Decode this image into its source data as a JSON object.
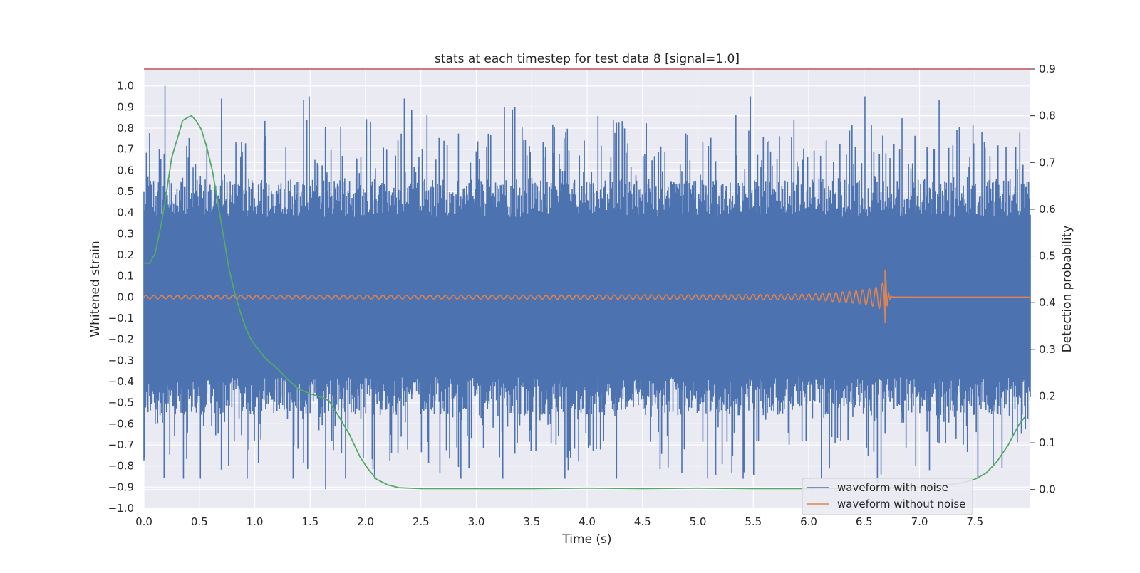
{
  "chart_data": {
    "type": "line",
    "title": "stats at each timestep for test data 8 [signal=1.0]",
    "xlabel": "Time (s)",
    "ylabel": "Whitened strain",
    "y2label": "Detection probability",
    "xlim": [
      0.0,
      8.0
    ],
    "ylim": [
      -1.0,
      1.08
    ],
    "y2lim": [
      -0.04,
      0.9
    ],
    "xticks": [
      "0.0",
      "0.5",
      "1.0",
      "1.5",
      "2.0",
      "2.5",
      "3.0",
      "3.5",
      "4.0",
      "4.5",
      "5.0",
      "5.5",
      "6.0",
      "6.5",
      "7.0",
      "7.5"
    ],
    "yticks": [
      "1.0",
      "0.9",
      "0.8",
      "0.7",
      "0.6",
      "0.5",
      "0.4",
      "0.3",
      "0.2",
      "0.1",
      "0.0",
      "−0.1",
      "−0.2",
      "−0.3",
      "−0.4",
      "−0.5",
      "−0.6",
      "−0.7",
      "−0.8",
      "−0.9",
      "−1.0"
    ],
    "y2ticks": [
      "0.9",
      "0.8",
      "0.7",
      "0.6",
      "0.5",
      "0.4",
      "0.3",
      "0.2",
      "0.1",
      "0.0"
    ],
    "grid": true,
    "background": "#eaeaf2",
    "legend_position": "lower-right",
    "threshold": {
      "y2": 0.9,
      "color": "#c44e52"
    },
    "series": [
      {
        "name": "waveform with noise",
        "color": "#4c72b0",
        "axis": "left",
        "noise": {
          "core_amplitude": 0.38,
          "peak_max": 1.0,
          "trough_min": -0.91,
          "sample_count": 1100
        }
      },
      {
        "name": "waveform without noise",
        "color": "#dd8452",
        "axis": "left",
        "chirp": {
          "start_amplitude": 0.008,
          "peak_amplitude": 0.13,
          "merger_time": 6.69
        }
      },
      {
        "color": "#55a868",
        "axis": "right",
        "x": [
          0.0,
          0.05,
          0.1,
          0.15,
          0.2,
          0.25,
          0.3,
          0.35,
          0.4,
          0.43,
          0.47,
          0.52,
          0.57,
          0.62,
          0.67,
          0.72,
          0.77,
          0.82,
          0.87,
          0.92,
          0.97,
          1.0,
          1.1,
          1.2,
          1.3,
          1.4,
          1.5,
          1.6,
          1.67,
          1.75,
          1.85,
          1.95,
          2.02,
          2.1,
          2.2,
          2.3,
          2.5,
          3.0,
          3.5,
          4.0,
          4.5,
          5.0,
          5.5,
          6.0,
          6.5,
          7.0,
          7.2,
          7.4,
          7.5,
          7.6,
          7.7,
          7.8,
          7.9,
          7.95
        ],
        "values": [
          0.485,
          0.484,
          0.505,
          0.56,
          0.63,
          0.71,
          0.75,
          0.79,
          0.797,
          0.8,
          0.79,
          0.77,
          0.73,
          0.68,
          0.61,
          0.54,
          0.47,
          0.42,
          0.38,
          0.345,
          0.32,
          0.31,
          0.28,
          0.26,
          0.235,
          0.215,
          0.205,
          0.198,
          0.19,
          0.16,
          0.12,
          0.07,
          0.045,
          0.022,
          0.01,
          0.004,
          0.002,
          0.002,
          0.002,
          0.003,
          0.002,
          0.003,
          0.002,
          0.002,
          0.003,
          0.004,
          0.008,
          0.015,
          0.022,
          0.035,
          0.06,
          0.095,
          0.14,
          0.155
        ]
      }
    ]
  }
}
